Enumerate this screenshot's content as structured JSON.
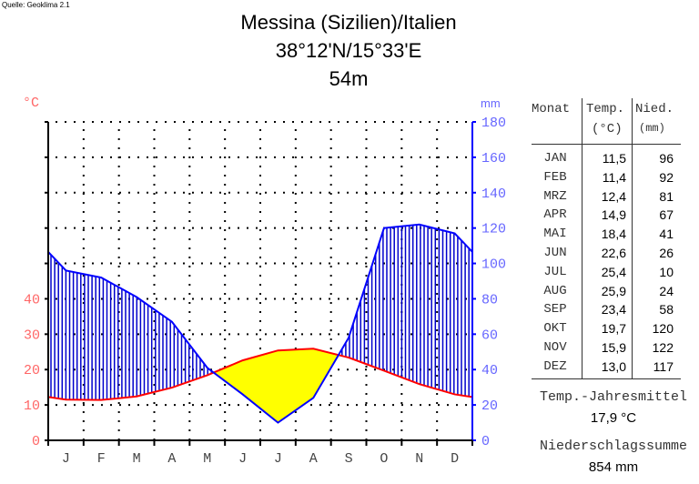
{
  "source": "Quelle: Geoklima 2.1",
  "title": {
    "line1": "Messina (Sizilien)/Italien",
    "line2": "38°12'N/15°33'E",
    "line3": "54m"
  },
  "chart_data": {
    "type": "line",
    "left_axis_label": "°C",
    "right_axis_label": "mm",
    "categories": [
      "J",
      "F",
      "M",
      "A",
      "M",
      "J",
      "J",
      "A",
      "S",
      "O",
      "N",
      "D"
    ],
    "temp_ticks": [
      0,
      10,
      20,
      30,
      40
    ],
    "precip_ticks": [
      0,
      20,
      40,
      60,
      80,
      100,
      120,
      140,
      160,
      180
    ],
    "temp_range": [
      0,
      90
    ],
    "precip_range": [
      0,
      180
    ],
    "grid": true,
    "series": [
      {
        "name": "Temp.",
        "unit": "°C",
        "color": "#ff0000",
        "values": [
          11.5,
          11.4,
          12.4,
          14.9,
          18.4,
          22.6,
          25.4,
          25.9,
          23.4,
          19.7,
          15.9,
          13.0
        ]
      },
      {
        "name": "Nied.",
        "unit": "mm",
        "color": "#0000ff",
        "values": [
          96,
          92,
          81,
          67,
          41,
          26,
          10,
          24,
          58,
          120,
          122,
          117
        ]
      }
    ],
    "humid_fill": "#0000cc",
    "arid_fill": "#ffff00"
  },
  "table": {
    "headers": {
      "month": "Monat",
      "temp": "Temp.",
      "temp_unit": "(°C)",
      "precip": "Nied.",
      "precip_unit": "(mm)"
    },
    "rows": [
      {
        "month": "JAN",
        "temp": "11,5",
        "precip": "96"
      },
      {
        "month": "FEB",
        "temp": "11,4",
        "precip": "92"
      },
      {
        "month": "MRZ",
        "temp": "12,4",
        "precip": "81"
      },
      {
        "month": "APR",
        "temp": "14,9",
        "precip": "67"
      },
      {
        "month": "MAI",
        "temp": "18,4",
        "precip": "41"
      },
      {
        "month": "JUN",
        "temp": "22,6",
        "precip": "26"
      },
      {
        "month": "JUL",
        "temp": "25,4",
        "precip": "10"
      },
      {
        "month": "AUG",
        "temp": "25,9",
        "precip": "24"
      },
      {
        "month": "SEP",
        "temp": "23,4",
        "precip": "58"
      },
      {
        "month": "OKT",
        "temp": "19,7",
        "precip": "120"
      },
      {
        "month": "NOV",
        "temp": "15,9",
        "precip": "122"
      },
      {
        "month": "DEZ",
        "temp": "13,0",
        "precip": "117"
      }
    ],
    "mean_temp_label": "Temp.-Jahresmittel",
    "mean_temp_value": "17,9 °C",
    "precip_sum_label": "Niederschlagssumme",
    "precip_sum_value": "854 mm"
  }
}
